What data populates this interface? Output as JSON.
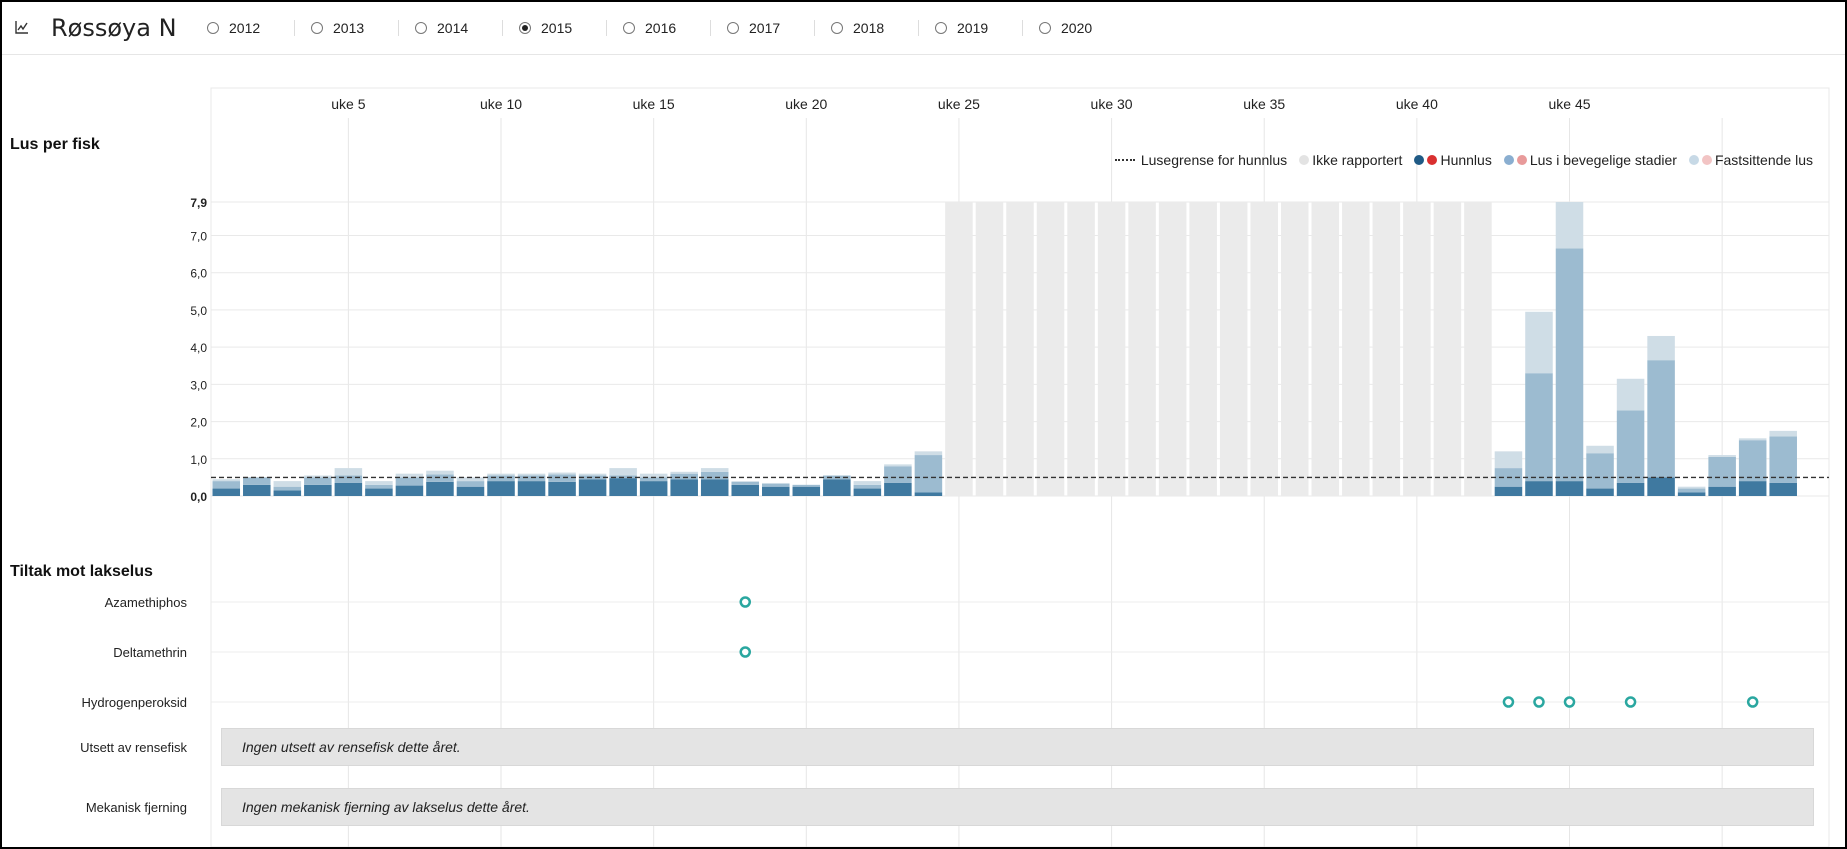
{
  "header": {
    "title": "Røssøya N",
    "icon": "line-chart-icon",
    "years": [
      {
        "label": "2012",
        "selected": false
      },
      {
        "label": "2013",
        "selected": false
      },
      {
        "label": "2014",
        "selected": false
      },
      {
        "label": "2015",
        "selected": true
      },
      {
        "label": "2016",
        "selected": false
      },
      {
        "label": "2017",
        "selected": false
      },
      {
        "label": "2018",
        "selected": false
      },
      {
        "label": "2019",
        "selected": false
      },
      {
        "label": "2020",
        "selected": false
      }
    ]
  },
  "colors": {
    "hunnlus": "#3f79a0",
    "bevegelige": "#9cbbd0",
    "fastsittende": "#cfdde6",
    "ikke_rapportert": "#ebebeb",
    "treatment": "#2aa7a0",
    "legend_red": "#d93030",
    "legend_red_light": "#e89a9a",
    "legend_red_lighter": "#f2c4c4"
  },
  "sections": {
    "lus_label": "Lus per fisk",
    "tiltak_label": "Tiltak mot lakselus"
  },
  "legend": {
    "lusegrense": "Lusegrense for hunnlus",
    "ikke_rapportert": "Ikke rapportert",
    "hunnlus": "Hunnlus",
    "bevegelige": "Lus i bevegelige stadier",
    "fastsittende": "Fastsittende lus"
  },
  "treatments": {
    "rows": [
      {
        "label": "Azamethiphos",
        "weeks": [
          18
        ]
      },
      {
        "label": "Deltamethrin",
        "weeks": [
          18
        ]
      },
      {
        "label": "Hydrogenperoksid",
        "weeks": [
          43,
          44,
          45,
          47,
          51
        ]
      }
    ],
    "boxes": [
      {
        "label": "Utsett av rensefisk",
        "text": "Ingen utsett av rensefisk dette året."
      },
      {
        "label": "Mekanisk fjerning",
        "text": "Ingen mekanisk fjerning av lakselus dette året."
      }
    ]
  },
  "chart_data": {
    "type": "bar",
    "stacked": true,
    "ylabel": "Lus per fisk",
    "y_ticks": [
      "0,0",
      "1,0",
      "2,0",
      "3,0",
      "4,0",
      "5,0",
      "6,0",
      "7,0",
      "7,9"
    ],
    "ylim": [
      0,
      7.9
    ],
    "threshold": 0.5,
    "x_ticks": [
      "uke 5",
      "uke 10",
      "uke 15",
      "uke 20",
      "uke 25",
      "uke 30",
      "uke 35",
      "uke 40",
      "uke 45"
    ],
    "weeks": [
      1,
      53
    ],
    "not_reported_weeks": [
      25,
      26,
      27,
      28,
      29,
      30,
      31,
      32,
      33,
      34,
      35,
      36,
      37,
      38,
      39,
      40,
      41,
      42
    ],
    "series": [
      {
        "name": "Hunnlus",
        "values": [
          0.2,
          0.3,
          0.15,
          0.3,
          0.35,
          0.2,
          0.28,
          0.38,
          0.25,
          0.4,
          0.4,
          0.38,
          0.45,
          0.48,
          0.4,
          0.45,
          0.45,
          0.3,
          0.25,
          0.25,
          0.45,
          0.2,
          0.35,
          0.1,
          null,
          null,
          null,
          null,
          null,
          null,
          null,
          null,
          null,
          null,
          null,
          null,
          null,
          null,
          null,
          null,
          null,
          null,
          0.25,
          0.4,
          0.4,
          0.2,
          0.35,
          0.5,
          0.1,
          0.25,
          0.4,
          0.35
        ]
      },
      {
        "name": "Lus i bevegelige stadier",
        "values": [
          0.2,
          0.2,
          0.1,
          0.2,
          0.2,
          0.1,
          0.22,
          0.2,
          0.15,
          0.15,
          0.15,
          0.2,
          0.1,
          0.07,
          0.1,
          0.15,
          0.2,
          0.08,
          0.08,
          0.05,
          0.1,
          0.1,
          0.45,
          1.0,
          null,
          null,
          null,
          null,
          null,
          null,
          null,
          null,
          null,
          null,
          null,
          null,
          null,
          null,
          null,
          null,
          null,
          null,
          0.5,
          2.9,
          6.25,
          0.95,
          1.95,
          3.15,
          0.1,
          0.8,
          1.1,
          1.25
        ]
      },
      {
        "name": "Fastsittende lus",
        "values": [
          0.05,
          0.0,
          0.15,
          0.05,
          0.2,
          0.1,
          0.1,
          0.1,
          0.1,
          0.05,
          0.05,
          0.05,
          0.05,
          0.2,
          0.1,
          0.05,
          0.1,
          0.02,
          0.02,
          0.0,
          0.0,
          0.1,
          0.05,
          0.1,
          null,
          null,
          null,
          null,
          null,
          null,
          null,
          null,
          null,
          null,
          null,
          null,
          null,
          null,
          null,
          null,
          null,
          null,
          0.45,
          1.65,
          1.25,
          0.2,
          0.85,
          0.65,
          0.05,
          0.05,
          0.05,
          0.15
        ]
      }
    ]
  }
}
